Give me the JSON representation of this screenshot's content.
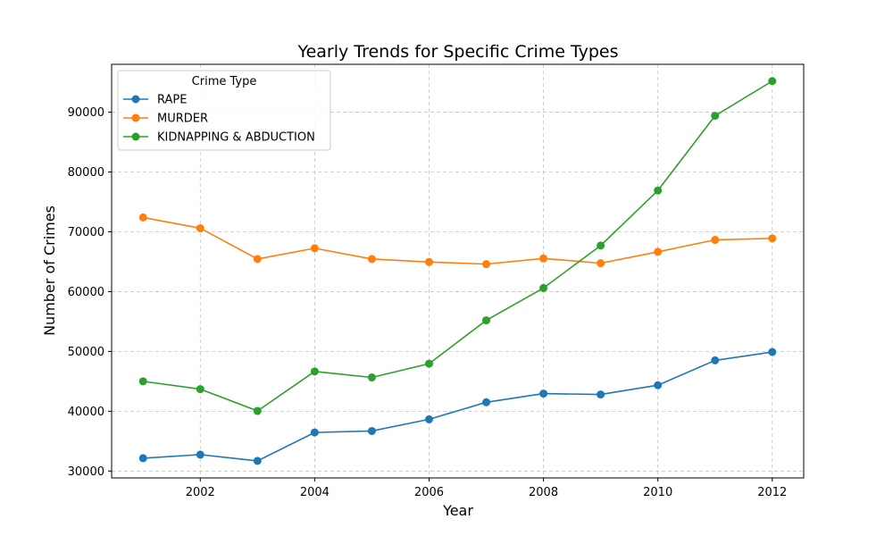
{
  "chart_data": {
    "type": "line",
    "title": "Yearly Trends for Specific Crime Types",
    "xlabel": "Year",
    "ylabel": "Number of Crimes",
    "x": [
      2001,
      2002,
      2003,
      2004,
      2005,
      2006,
      2007,
      2008,
      2009,
      2010,
      2011,
      2012
    ],
    "xticks": [
      2002,
      2004,
      2006,
      2008,
      2010,
      2012
    ],
    "yticks": [
      30000,
      40000,
      50000,
      60000,
      70000,
      80000,
      90000
    ],
    "xlim": [
      2000.45,
      2012.55
    ],
    "ylim": [
      28850,
      98000
    ],
    "grid": true,
    "marker": "circle",
    "legend": {
      "title": "Crime Type",
      "position": "top-left"
    },
    "series": [
      {
        "name": "RAPE",
        "color": "#1f77b4",
        "values": [
          32150,
          32750,
          31700,
          36450,
          36700,
          38650,
          41500,
          42950,
          42800,
          44350,
          48500,
          49900
        ]
      },
      {
        "name": "MURDER",
        "color": "#ff7f0e",
        "values": [
          72400,
          70600,
          65450,
          67250,
          65450,
          64950,
          64600,
          65550,
          64750,
          66650,
          68650,
          68900
        ]
      },
      {
        "name": "KIDNAPPING & ABDUCTION",
        "color": "#2ca02c",
        "values": [
          45000,
          43700,
          40050,
          46650,
          45650,
          47950,
          55200,
          60600,
          67700,
          76900,
          89400,
          95200
        ]
      }
    ]
  }
}
